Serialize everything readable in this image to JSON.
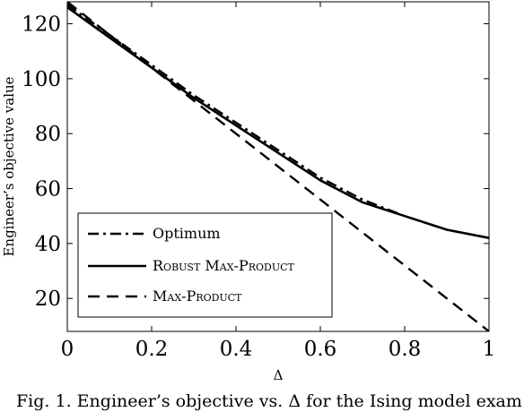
{
  "figure": {
    "caption": "Fig. 1.   Engineer’s objective vs. Δ for the Ising model exam"
  },
  "chart_data": {
    "type": "line",
    "xlabel": "Δ",
    "ylabel": "Engineer’s objective value",
    "xlim": [
      0,
      1
    ],
    "ylim": [
      8,
      128
    ],
    "x_ticks": [
      0,
      0.2,
      0.4,
      0.6,
      0.8,
      1
    ],
    "x_tick_labels": [
      "0",
      "0.2",
      "0.4",
      "0.6",
      "0.8",
      "1"
    ],
    "y_ticks": [
      20,
      40,
      60,
      80,
      100,
      120
    ],
    "y_tick_labels": [
      "20",
      "40",
      "60",
      "80",
      "100",
      "120"
    ],
    "grid": false,
    "legend_position": "bottom-left",
    "series": [
      {
        "name": "Optimum",
        "style": "dashdot",
        "color": "#000000",
        "x": [
          0,
          0.1,
          0.2,
          0.3,
          0.4,
          0.5,
          0.6,
          0.7,
          0.8,
          0.9,
          1.0
        ],
        "y": [
          127,
          116,
          105,
          94,
          84,
          74,
          64,
          56,
          50,
          45,
          42
        ]
      },
      {
        "name": "Robust Max-Product",
        "style": "solid",
        "color": "#000000",
        "x": [
          0,
          0.1,
          0.2,
          0.3,
          0.4,
          0.5,
          0.6,
          0.7,
          0.8,
          0.9,
          1.0
        ],
        "y": [
          126,
          115,
          104,
          93,
          83,
          73,
          63,
          55,
          50,
          45,
          42
        ]
      },
      {
        "name": "Max-Product",
        "style": "dashed",
        "color": "#000000",
        "x": [
          0,
          1.0
        ],
        "y": [
          128,
          8
        ]
      }
    ]
  }
}
